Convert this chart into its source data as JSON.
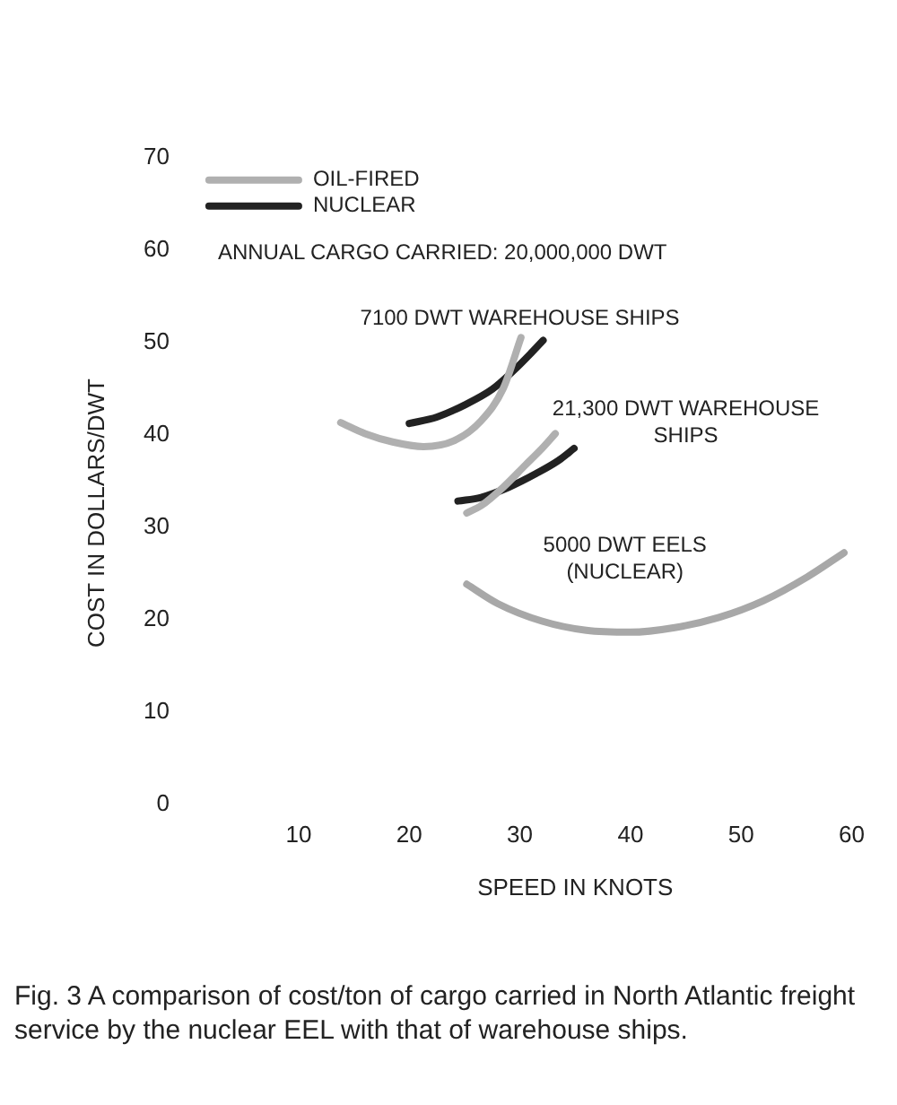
{
  "chart_data": {
    "type": "line",
    "xlabel": "SPEED IN KNOTS",
    "ylabel": "COST IN DOLLARS/DWT",
    "xlim": [
      10,
      60
    ],
    "xticks": [
      10,
      20,
      30,
      40,
      50,
      60
    ],
    "ylim": [
      0,
      70
    ],
    "yticks": [
      0,
      10,
      20,
      30,
      40,
      50,
      60,
      70
    ],
    "grid": false,
    "legend": "top left",
    "marker": "none",
    "series": [
      {
        "name": "OIL-FIRED",
        "color": "#b0b0b0",
        "x": [
          13.8,
          16,
          18.5,
          21.3,
          24,
          26.5,
          28.5,
          30.1
        ],
        "values": [
          41.3,
          40.1,
          39.2,
          38.7,
          39.3,
          41.5,
          45,
          50.5
        ]
      },
      {
        "name": "NUCLEAR",
        "color": "#222222",
        "x": [
          20,
          22.5,
          25,
          27.5,
          29.5,
          31,
          32.1
        ],
        "values": [
          41.2,
          41.9,
          43.2,
          44.9,
          47,
          48.8,
          50.2
        ]
      },
      {
        "color": "#b0b0b0",
        "x": [
          25.2,
          26.5,
          28.5,
          30.5,
          32,
          33.2
        ],
        "values": [
          31.5,
          32.3,
          34.3,
          36.7,
          38.5,
          40.1
        ]
      },
      {
        "color": "#222222",
        "x": [
          24.4,
          26.5,
          29,
          31.5,
          33.5,
          34.9
        ],
        "values": [
          32.8,
          33.2,
          34.3,
          35.8,
          37.2,
          38.5
        ]
      },
      {
        "color": "#a8a8a8",
        "x": [
          25.2,
          28,
          32,
          36,
          40,
          44,
          48,
          52,
          56,
          59.3
        ],
        "values": [
          23.8,
          21.7,
          19.8,
          18.8,
          18.6,
          19.1,
          20.2,
          22,
          24.6,
          27.2
        ]
      }
    ],
    "annotations": [
      "ANNUAL CARGO CARRIED: 20,000,000 DWT",
      "7100 DWT WAREHOUSE SHIPS",
      "21,300 DWT WAREHOUSE SHIPS",
      "5000 DWT EELS (NUCLEAR)",
      "Fig. 3 A comparison of cost/ton of cargo carried in North Atlantic freight service by the nuclear EEL with that of warehouse ships."
    ]
  }
}
